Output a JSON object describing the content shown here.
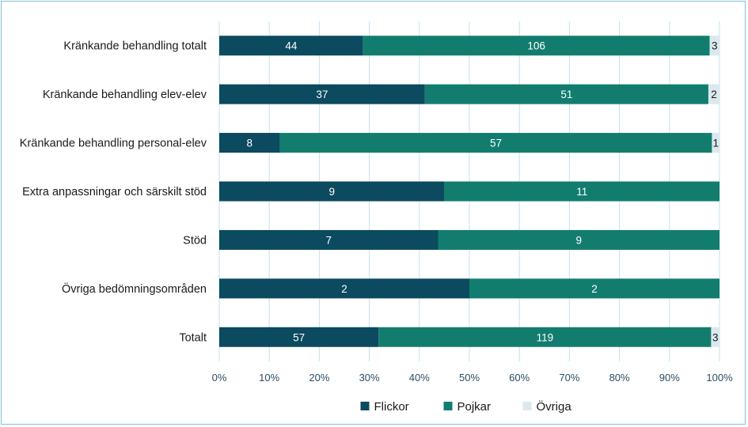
{
  "chart_data": {
    "type": "bar",
    "orientation": "horizontal",
    "stacked": "percent",
    "categories": [
      "Kränkande behandling totalt",
      "Kränkande behandling elev-elev",
      "Kränkande behandling personal-elev",
      "Extra anpassningar och särskilt stöd",
      "Stöd",
      "Övriga bedömningsområden",
      "Totalt"
    ],
    "series": [
      {
        "name": "Flickor",
        "color": "#0b4a5f",
        "values": [
          44,
          37,
          8,
          9,
          7,
          2,
          57
        ]
      },
      {
        "name": "Pojkar",
        "color": "#127d6e",
        "values": [
          106,
          51,
          57,
          11,
          9,
          2,
          119
        ]
      },
      {
        "name": "Övriga",
        "color": "#dbe9ee",
        "values": [
          3,
          2,
          1,
          0,
          0,
          0,
          3
        ]
      }
    ],
    "xlim": [
      0,
      100
    ],
    "xticks": [
      "0%",
      "10%",
      "20%",
      "30%",
      "40%",
      "50%",
      "60%",
      "70%",
      "80%",
      "90%",
      "100%"
    ],
    "grid": "vertical",
    "legend": "bottom"
  }
}
